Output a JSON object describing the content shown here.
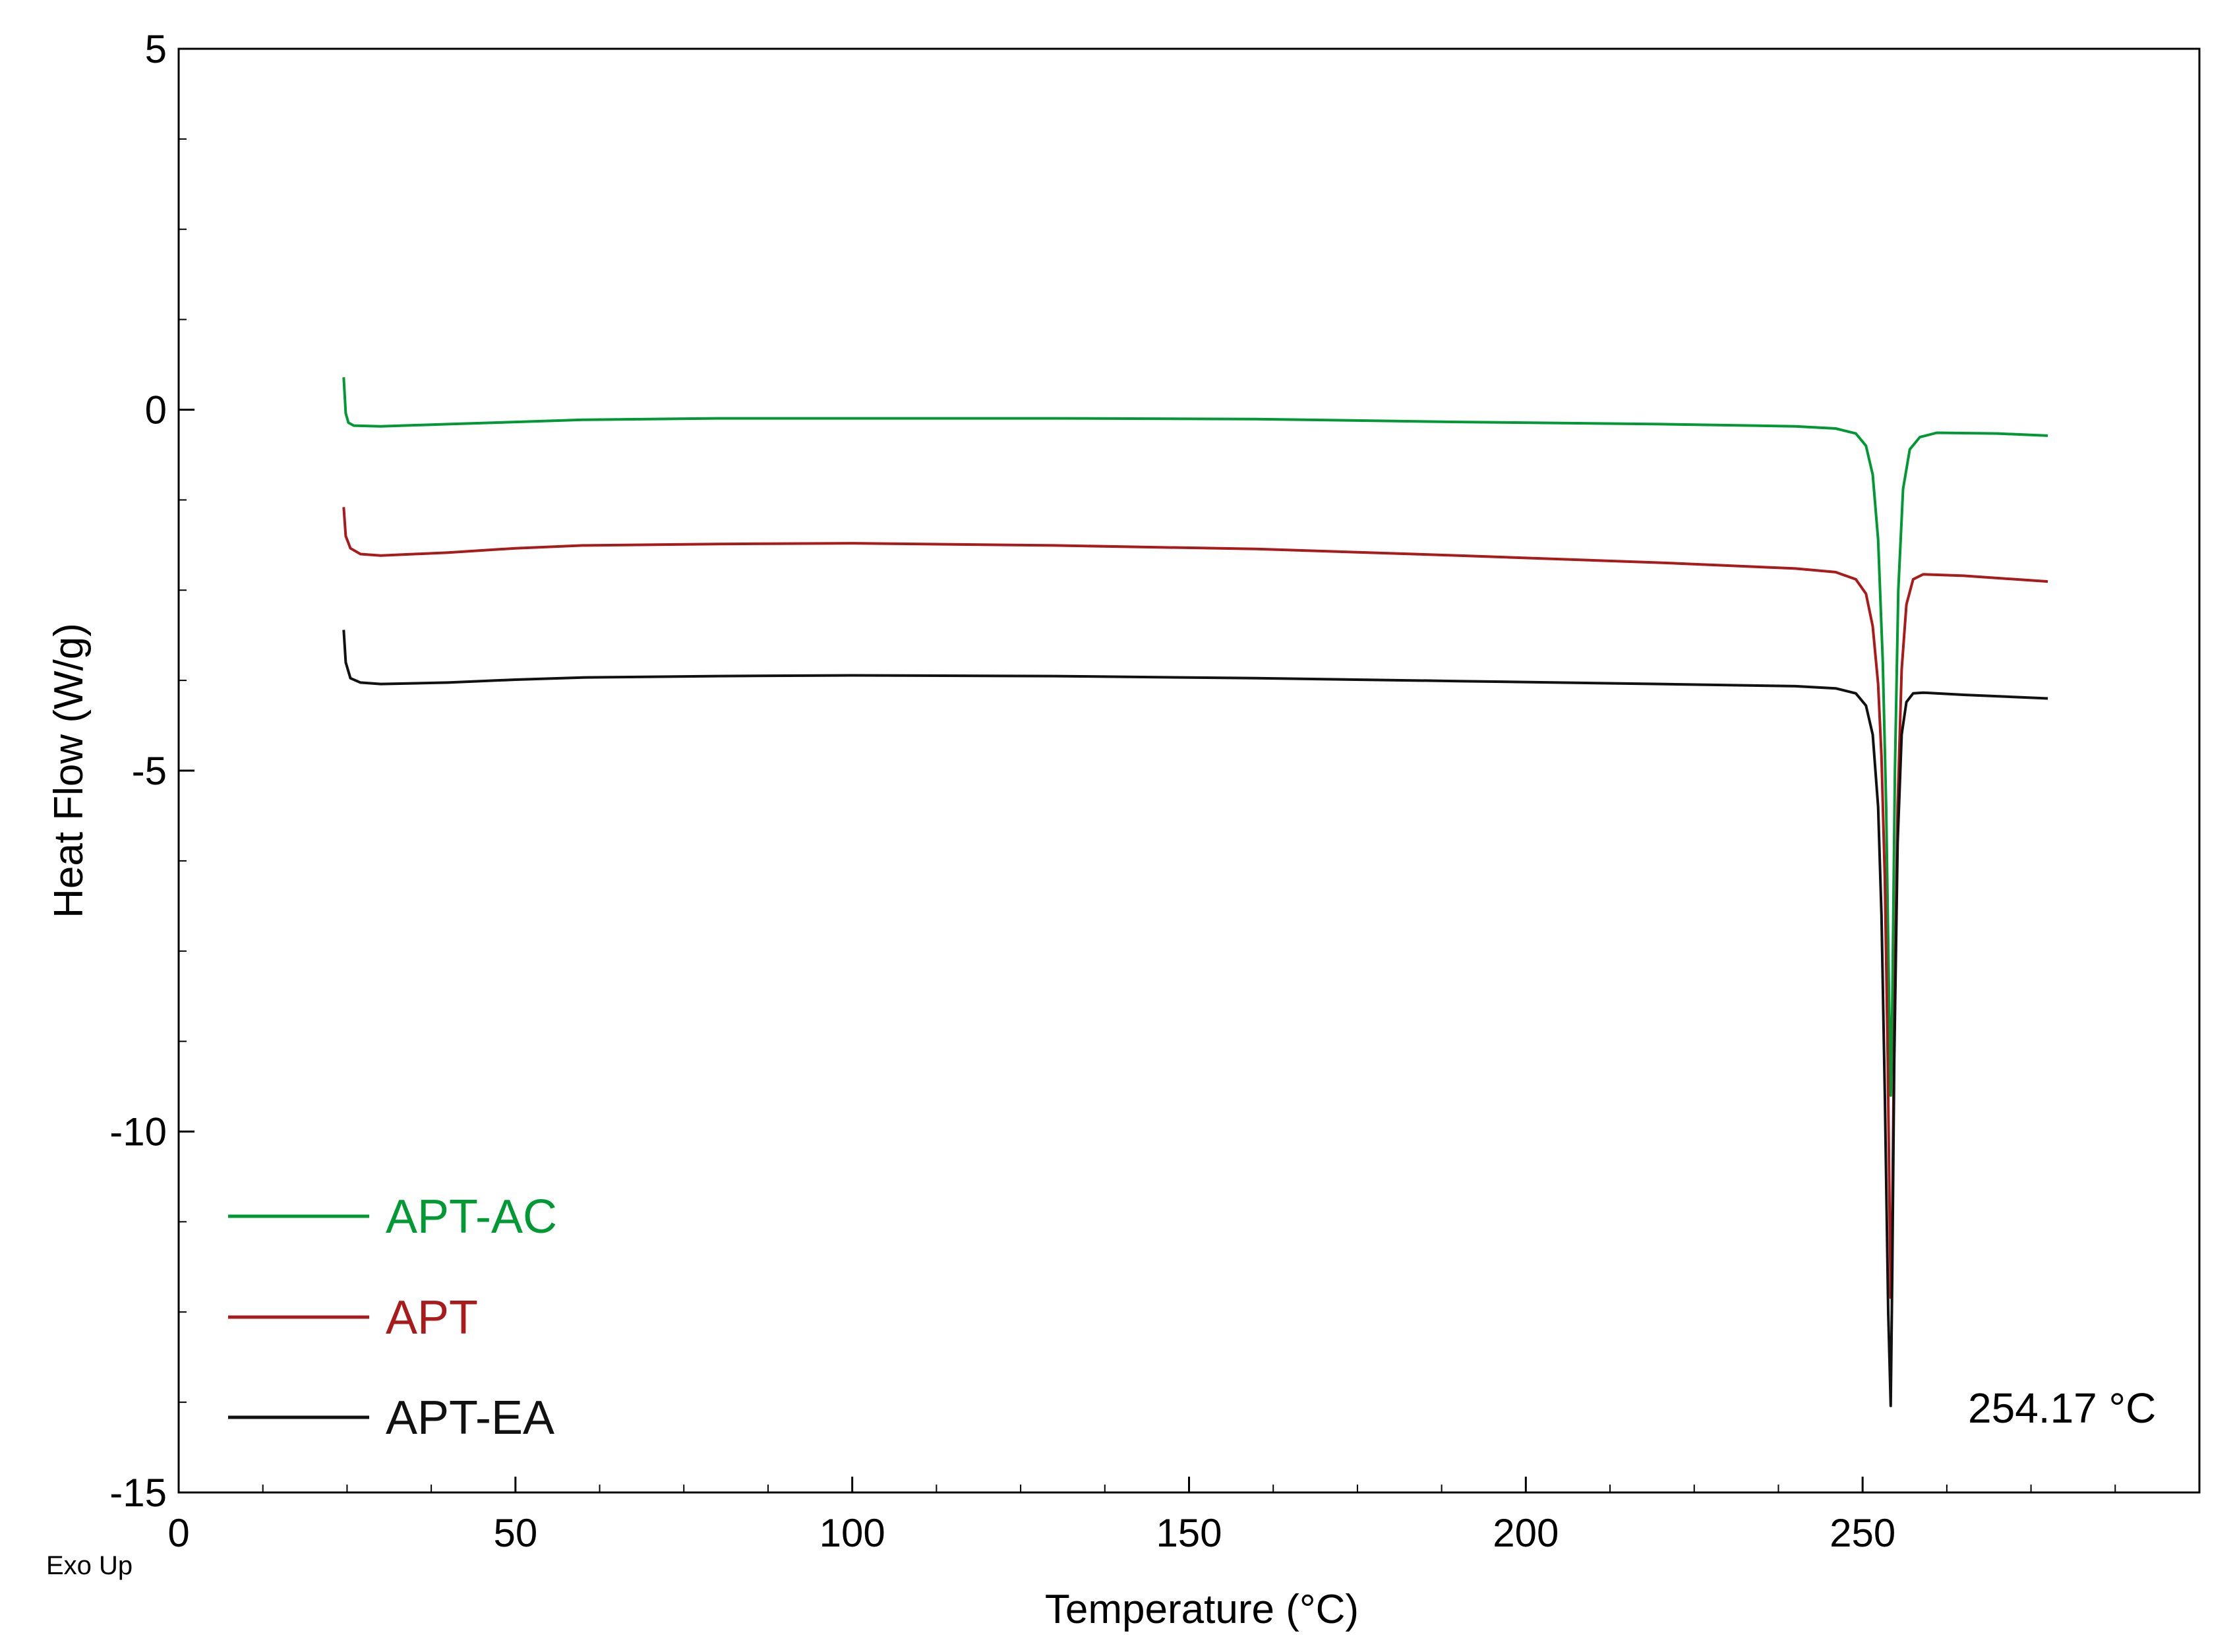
{
  "chart_data": {
    "type": "line",
    "title": "",
    "xlabel": "Temperature (°C)",
    "ylabel": "Heat Flow (W/g)",
    "xlim": [
      0,
      300
    ],
    "ylim": [
      -15,
      5
    ],
    "x_ticks": [
      0,
      50,
      100,
      150,
      200,
      250
    ],
    "y_ticks": [
      5,
      0,
      -5,
      -10,
      -15
    ],
    "grid": false,
    "legend_position": "bottom-left",
    "exo_label": "Exo Up",
    "annotation": {
      "text": "254.17 °C",
      "x": 263.5,
      "y": -13.7
    },
    "series": [
      {
        "name": "APT-AC",
        "color": "#009933",
        "points": [
          [
            24.5,
            0.45
          ],
          [
            24.8,
            -0.05
          ],
          [
            25.2,
            -0.18
          ],
          [
            26,
            -0.22
          ],
          [
            30,
            -0.23
          ],
          [
            40,
            -0.2
          ],
          [
            50,
            -0.17
          ],
          [
            60,
            -0.14
          ],
          [
            80,
            -0.12
          ],
          [
            100,
            -0.12
          ],
          [
            130,
            -0.12
          ],
          [
            160,
            -0.13
          ],
          [
            190,
            -0.17
          ],
          [
            220,
            -0.2
          ],
          [
            240,
            -0.23
          ],
          [
            246,
            -0.26
          ],
          [
            249,
            -0.33
          ],
          [
            250.5,
            -0.5
          ],
          [
            251.5,
            -0.9
          ],
          [
            252.3,
            -1.8
          ],
          [
            253,
            -3.5
          ],
          [
            253.5,
            -5.5
          ],
          [
            253.9,
            -8.0
          ],
          [
            254.17,
            -9.5
          ],
          [
            254.4,
            -8.3
          ],
          [
            254.8,
            -5.0
          ],
          [
            255.3,
            -2.5
          ],
          [
            256,
            -1.1
          ],
          [
            257,
            -0.55
          ],
          [
            258.5,
            -0.38
          ],
          [
            261,
            -0.32
          ],
          [
            270,
            -0.33
          ],
          [
            277.5,
            -0.36
          ]
        ]
      },
      {
        "name": "APT",
        "color": "#aa1a1a",
        "points": [
          [
            24.5,
            -1.35
          ],
          [
            24.8,
            -1.75
          ],
          [
            25.5,
            -1.92
          ],
          [
            27,
            -2.0
          ],
          [
            30,
            -2.02
          ],
          [
            40,
            -1.98
          ],
          [
            50,
            -1.92
          ],
          [
            60,
            -1.88
          ],
          [
            80,
            -1.86
          ],
          [
            100,
            -1.85
          ],
          [
            130,
            -1.88
          ],
          [
            160,
            -1.93
          ],
          [
            190,
            -2.02
          ],
          [
            220,
            -2.12
          ],
          [
            240,
            -2.2
          ],
          [
            246,
            -2.25
          ],
          [
            249,
            -2.35
          ],
          [
            250.5,
            -2.55
          ],
          [
            251.5,
            -3.0
          ],
          [
            252.3,
            -3.8
          ],
          [
            252.8,
            -4.8
          ],
          [
            253.3,
            -6.5
          ],
          [
            253.7,
            -8.8
          ],
          [
            254.0,
            -11.0
          ],
          [
            254.17,
            -12.3
          ],
          [
            254.4,
            -11.2
          ],
          [
            254.7,
            -8.5
          ],
          [
            255.2,
            -5.5
          ],
          [
            255.8,
            -3.6
          ],
          [
            256.5,
            -2.7
          ],
          [
            257.5,
            -2.35
          ],
          [
            259,
            -2.28
          ],
          [
            265,
            -2.3
          ],
          [
            277.5,
            -2.38
          ]
        ]
      },
      {
        "name": "APT-EA",
        "color": "#111111",
        "points": [
          [
            24.5,
            -3.05
          ],
          [
            24.8,
            -3.5
          ],
          [
            25.5,
            -3.72
          ],
          [
            27,
            -3.78
          ],
          [
            30,
            -3.8
          ],
          [
            40,
            -3.78
          ],
          [
            50,
            -3.74
          ],
          [
            60,
            -3.71
          ],
          [
            80,
            -3.69
          ],
          [
            100,
            -3.68
          ],
          [
            130,
            -3.69
          ],
          [
            160,
            -3.72
          ],
          [
            190,
            -3.76
          ],
          [
            220,
            -3.8
          ],
          [
            240,
            -3.83
          ],
          [
            246,
            -3.86
          ],
          [
            249,
            -3.93
          ],
          [
            250.5,
            -4.1
          ],
          [
            251.5,
            -4.5
          ],
          [
            252.3,
            -5.5
          ],
          [
            252.8,
            -7.0
          ],
          [
            253.3,
            -9.5
          ],
          [
            253.8,
            -12.5
          ],
          [
            254.17,
            -13.8
          ],
          [
            254.4,
            -12.0
          ],
          [
            254.7,
            -9.0
          ],
          [
            255.2,
            -6.0
          ],
          [
            255.8,
            -4.5
          ],
          [
            256.5,
            -4.05
          ],
          [
            257.5,
            -3.93
          ],
          [
            259,
            -3.92
          ],
          [
            265,
            -3.95
          ],
          [
            277.5,
            -4.0
          ]
        ]
      }
    ]
  }
}
